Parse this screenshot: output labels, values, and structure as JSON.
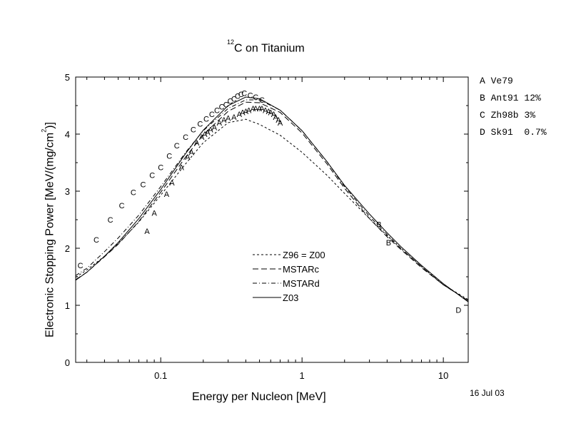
{
  "chart_data": {
    "type": "line",
    "title_super": "12",
    "title_text": "C on Titanium",
    "xlabel": "Energy per Nucleon [MeV]",
    "ylabel_prefix": "Electronic Stopping Power [MeV/(mg/cm",
    "ylabel_super": "2",
    "ylabel_suffix": ")]",
    "xscale": "log",
    "xlim": [
      0.025,
      15
    ],
    "ylim": [
      0,
      5
    ],
    "x_ticks": [
      {
        "value": 0.1,
        "label": "0.1"
      },
      {
        "value": 1,
        "label": "1"
      },
      {
        "value": 10,
        "label": "10"
      }
    ],
    "y_ticks": [
      {
        "value": 0,
        "label": "0"
      },
      {
        "value": 1,
        "label": "1"
      },
      {
        "value": 2,
        "label": "2"
      },
      {
        "value": 3,
        "label": "3"
      },
      {
        "value": 4,
        "label": "4"
      },
      {
        "value": 5,
        "label": "5"
      }
    ],
    "date": "16 Jul 03",
    "references": [
      {
        "symbol": "A",
        "text": "Ve79"
      },
      {
        "symbol": "B",
        "text": "Ant91 12%"
      },
      {
        "symbol": "C",
        "text": "Zh98b 3%"
      },
      {
        "symbol": "D",
        "text": "Sk91  0.7%"
      }
    ],
    "legend_position": "center-left",
    "series": [
      {
        "name": "Z96 = Z00",
        "dash": "3,3",
        "x": [
          0.025,
          0.03,
          0.04,
          0.05,
          0.07,
          0.1,
          0.15,
          0.2,
          0.3,
          0.4,
          0.5,
          0.7,
          1,
          1.5,
          2,
          3,
          4,
          5,
          7,
          10,
          15
        ],
        "y": [
          1.49,
          1.62,
          1.86,
          2.08,
          2.46,
          2.93,
          3.48,
          3.85,
          4.2,
          4.26,
          4.17,
          3.98,
          3.68,
          3.28,
          2.96,
          2.52,
          2.22,
          2.0,
          1.68,
          1.36,
          1.1
        ]
      },
      {
        "name": "MSTARc",
        "dash": "8,4",
        "x": [
          0.025,
          0.03,
          0.04,
          0.05,
          0.07,
          0.1,
          0.15,
          0.2,
          0.3,
          0.4,
          0.5,
          0.7,
          1,
          1.5,
          2,
          3,
          4,
          5,
          7,
          10,
          15
        ],
        "y": [
          1.45,
          1.58,
          1.85,
          2.07,
          2.47,
          2.98,
          3.6,
          3.99,
          4.4,
          4.56,
          4.55,
          4.38,
          4.02,
          3.48,
          3.05,
          2.52,
          2.2,
          1.98,
          1.66,
          1.36,
          1.08
        ]
      },
      {
        "name": "MSTARd",
        "dash": "6,3,1,3",
        "x": [
          0.025,
          0.03,
          0.04,
          0.05,
          0.07,
          0.1,
          0.15,
          0.2,
          0.3,
          0.4,
          0.5,
          0.7,
          1,
          1.5,
          2,
          3,
          4,
          5,
          7,
          10,
          15
        ],
        "y": [
          1.52,
          1.65,
          1.94,
          2.18,
          2.58,
          3.08,
          3.68,
          4.06,
          4.45,
          4.6,
          4.6,
          4.42,
          4.06,
          3.52,
          3.08,
          2.56,
          2.24,
          2.0,
          1.68,
          1.36,
          1.08
        ]
      },
      {
        "name": "Z03",
        "dash": "",
        "x": [
          0.025,
          0.03,
          0.04,
          0.05,
          0.07,
          0.1,
          0.15,
          0.2,
          0.3,
          0.4,
          0.5,
          0.7,
          1,
          1.5,
          2,
          3,
          4,
          5,
          7,
          10,
          15
        ],
        "y": [
          1.44,
          1.58,
          1.86,
          2.1,
          2.52,
          3.03,
          3.66,
          4.07,
          4.5,
          4.65,
          4.62,
          4.42,
          4.06,
          3.52,
          3.1,
          2.6,
          2.27,
          2.03,
          1.7,
          1.38,
          1.06
        ]
      }
    ],
    "points": [
      {
        "symbol": "A",
        "x": [
          0.08,
          0.09,
          0.11,
          0.12,
          0.14,
          0.155,
          0.165,
          0.18,
          0.195,
          0.205,
          0.215,
          0.225,
          0.24,
          0.26,
          0.28,
          0.3,
          0.33,
          0.36,
          0.38,
          0.4,
          0.42,
          0.45,
          0.47,
          0.5,
          0.52,
          0.55,
          0.58,
          0.6,
          0.63,
          0.65,
          0.68,
          0.7
        ],
        "y": [
          2.3,
          2.62,
          2.95,
          3.15,
          3.42,
          3.6,
          3.68,
          3.85,
          3.95,
          4.0,
          4.03,
          4.08,
          4.12,
          4.2,
          4.25,
          4.28,
          4.3,
          4.35,
          4.38,
          4.4,
          4.42,
          4.45,
          4.45,
          4.45,
          4.45,
          4.42,
          4.4,
          4.38,
          4.35,
          4.3,
          4.25,
          4.2
        ]
      },
      {
        "symbol": "B",
        "x": [
          3.5,
          4.1
        ],
        "y": [
          2.42,
          2.1
        ]
      },
      {
        "symbol": "C",
        "x": [
          0.027,
          0.035,
          0.044,
          0.053,
          0.064,
          0.075,
          0.087,
          0.1,
          0.115,
          0.13,
          0.15,
          0.17,
          0.19,
          0.21,
          0.23,
          0.25,
          0.27,
          0.29,
          0.31,
          0.33,
          0.35,
          0.37,
          0.39,
          0.43,
          0.47,
          0.52
        ],
        "y": [
          1.7,
          2.15,
          2.5,
          2.75,
          2.98,
          3.12,
          3.28,
          3.42,
          3.62,
          3.8,
          3.95,
          4.08,
          4.18,
          4.27,
          4.35,
          4.42,
          4.48,
          4.52,
          4.58,
          4.62,
          4.67,
          4.7,
          4.72,
          4.68,
          4.65,
          4.6
        ]
      },
      {
        "symbol": "D",
        "x": [
          12.8
        ],
        "y": [
          0.92
        ]
      }
    ]
  }
}
